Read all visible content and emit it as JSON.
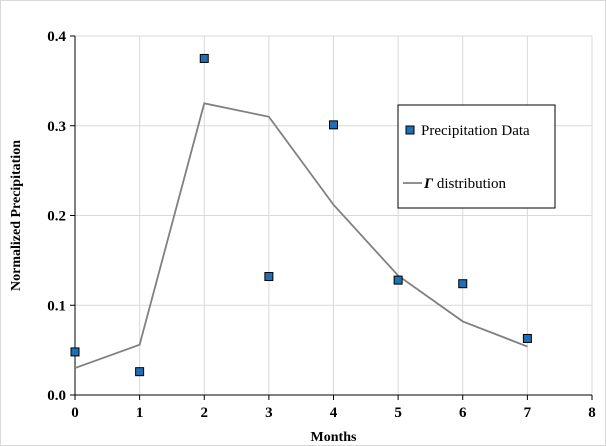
{
  "chart_data": {
    "type": "scatter",
    "xlabel": "Months",
    "ylabel": "Normalized Precipitation",
    "xlim": [
      0,
      8
    ],
    "ylim": [
      0,
      0.4
    ],
    "x_ticks": [
      "0",
      "1",
      "2",
      "3",
      "4",
      "5",
      "6",
      "7",
      "8"
    ],
    "y_ticks": [
      "0.0",
      "0.1",
      "0.2",
      "0.3",
      "0.4"
    ],
    "grid": true,
    "legend_position": "right",
    "series": [
      {
        "name": "Precipitation Data",
        "kind": "scatter",
        "marker": "square",
        "color": "#1f6fb4",
        "x": [
          0,
          1,
          2,
          3,
          4,
          5,
          6,
          7
        ],
        "y": [
          0.048,
          0.026,
          0.375,
          0.132,
          0.301,
          0.128,
          0.124,
          0.063
        ]
      },
      {
        "name_symbol": "Γ",
        "name_text": " distribution",
        "kind": "line",
        "color": "#808080",
        "x": [
          0,
          1,
          2,
          3,
          4,
          5,
          6,
          7
        ],
        "y": [
          0.03,
          0.056,
          0.325,
          0.31,
          0.212,
          0.133,
          0.082,
          0.054
        ]
      }
    ]
  }
}
